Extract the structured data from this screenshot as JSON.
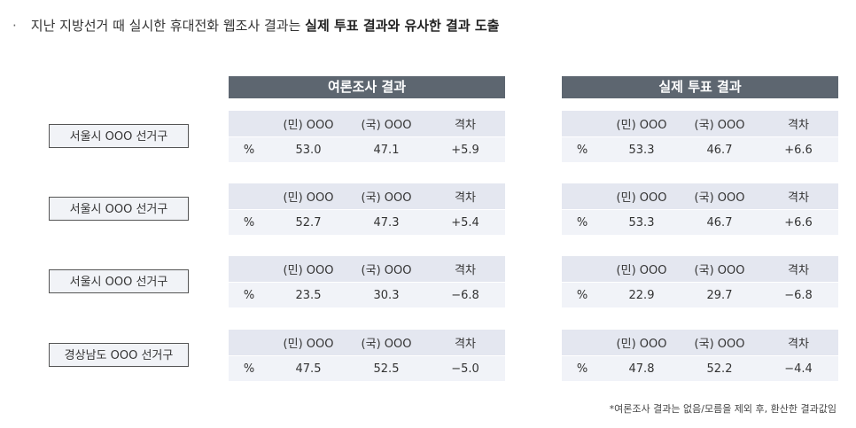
{
  "headline": {
    "bullet": "·",
    "normal": "지난 지방선거 때 실시한 휴대전화 웹조사 결과는 ",
    "bold": "실제 투표 결과와 유사한 결과 도출"
  },
  "groups": {
    "survey": "여론조사 결과",
    "actual": "실제 투표 결과"
  },
  "columns": [
    "",
    "(민) OOO",
    "(국) OOO",
    "격차"
  ],
  "rows": [
    {
      "region": "서울시 OOO 선거구",
      "survey": {
        "unit": "%",
        "min": "53.0",
        "guk": "47.1",
        "gap": "+5.9",
        "gap_sign": "pos"
      },
      "actual": {
        "unit": "%",
        "min": "53.3",
        "guk": "46.7",
        "gap": "+6.6",
        "gap_sign": "pos"
      }
    },
    {
      "region": "서울시 OOO 선거구",
      "survey": {
        "unit": "%",
        "min": "52.7",
        "guk": "47.3",
        "gap": "+5.4",
        "gap_sign": "pos"
      },
      "actual": {
        "unit": "%",
        "min": "53.3",
        "guk": "46.7",
        "gap": "+6.6",
        "gap_sign": "pos"
      }
    },
    {
      "region": "서울시 OOO 선거구",
      "survey": {
        "unit": "%",
        "min": "23.5",
        "guk": "30.3",
        "gap": "−6.8",
        "gap_sign": "neg"
      },
      "actual": {
        "unit": "%",
        "min": "22.9",
        "guk": "29.7",
        "gap": "−6.8",
        "gap_sign": "neg"
      }
    },
    {
      "region": "경상남도 OOO 선거구",
      "survey": {
        "unit": "%",
        "min": "47.5",
        "guk": "52.5",
        "gap": "−5.0",
        "gap_sign": "neg"
      },
      "actual": {
        "unit": "%",
        "min": "47.8",
        "guk": "52.2",
        "gap": "−4.4",
        "gap_sign": "neg"
      }
    }
  ],
  "colors": {
    "positive": "#2b46d6",
    "negative": "#e02020",
    "header_bar": "#5d6670"
  },
  "note": "*여론조사 결과는 없음/모름을 제외 후, 환산한 결과값임"
}
